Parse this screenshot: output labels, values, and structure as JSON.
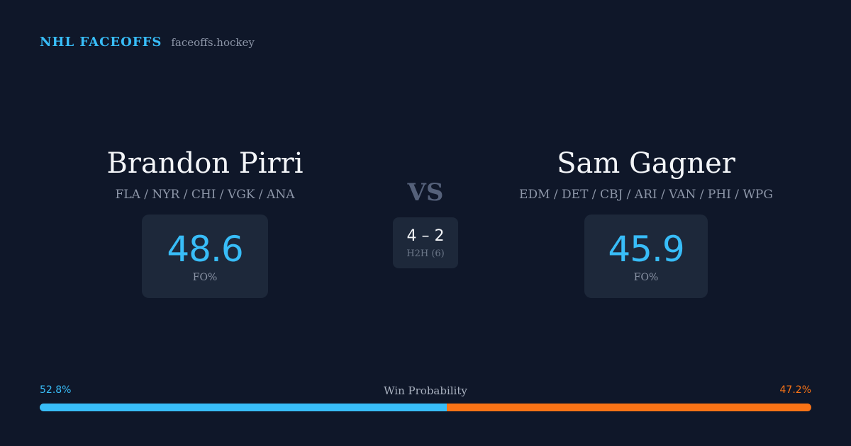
{
  "brand": {
    "name": "NHL FACEOFFS",
    "site": "faceoffs.hockey"
  },
  "player_left": {
    "name": "Brandon Pirri",
    "teams": "FLA / NYR / CHI / VGK / ANA",
    "fo_value": "48.6",
    "fo_label": "FO%"
  },
  "player_right": {
    "name": "Sam Gagner",
    "teams": "EDM / DET / CBJ / ARI / VAN / PHI / WPG",
    "fo_value": "45.9",
    "fo_label": "FO%"
  },
  "vs_label": "VS",
  "head_to_head": {
    "score": "4 – 2",
    "label": "H2H (6)"
  },
  "win_probability": {
    "title": "Win Probability",
    "left_label": "52.8%",
    "right_label": "47.2%",
    "left_fraction": 0.528,
    "right_fraction": 0.472
  },
  "colors": {
    "background": "#0f1729",
    "card": "#1d283a",
    "accent_blue": "#38bdf8",
    "accent_orange": "#f97316"
  }
}
